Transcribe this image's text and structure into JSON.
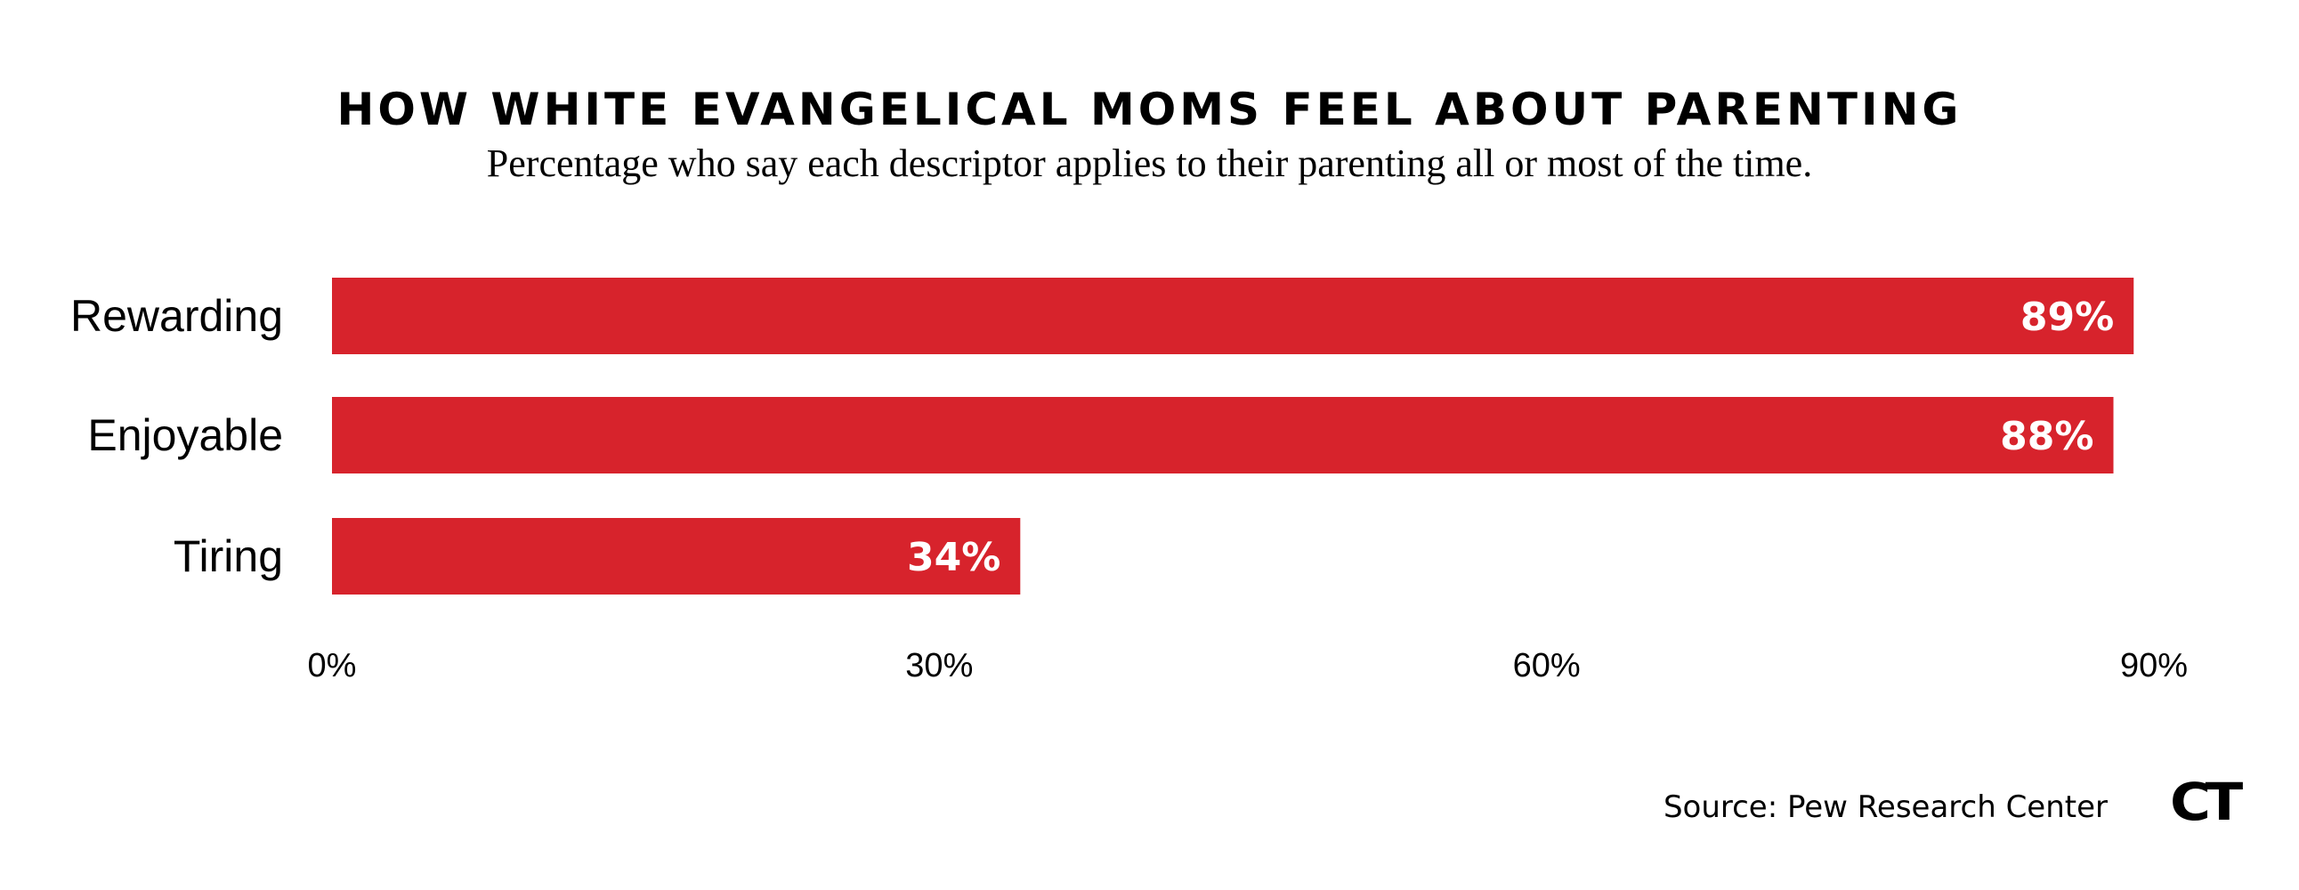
{
  "chart_data": {
    "type": "bar",
    "orientation": "horizontal",
    "title": "HOW WHITE EVANGELICAL MOMS FEEL ABOUT PARENTING",
    "subtitle": "Percentage who say each descriptor applies to their parenting all or most of the time.",
    "categories": [
      "Rewarding",
      "Enjoyable",
      "Tiring"
    ],
    "values": [
      89,
      88,
      34
    ],
    "value_labels": [
      "89%",
      "88%",
      "34%"
    ],
    "xlim": [
      0,
      90
    ],
    "xticks": [
      0,
      30,
      60,
      90
    ],
    "xtick_labels": [
      "0%",
      "30%",
      "60%",
      "90%"
    ],
    "xlabel": "",
    "ylabel": "",
    "grid": false,
    "bar_color": "#d7232c"
  },
  "source": "Source: Pew Research Center",
  "logo_text": "CT"
}
